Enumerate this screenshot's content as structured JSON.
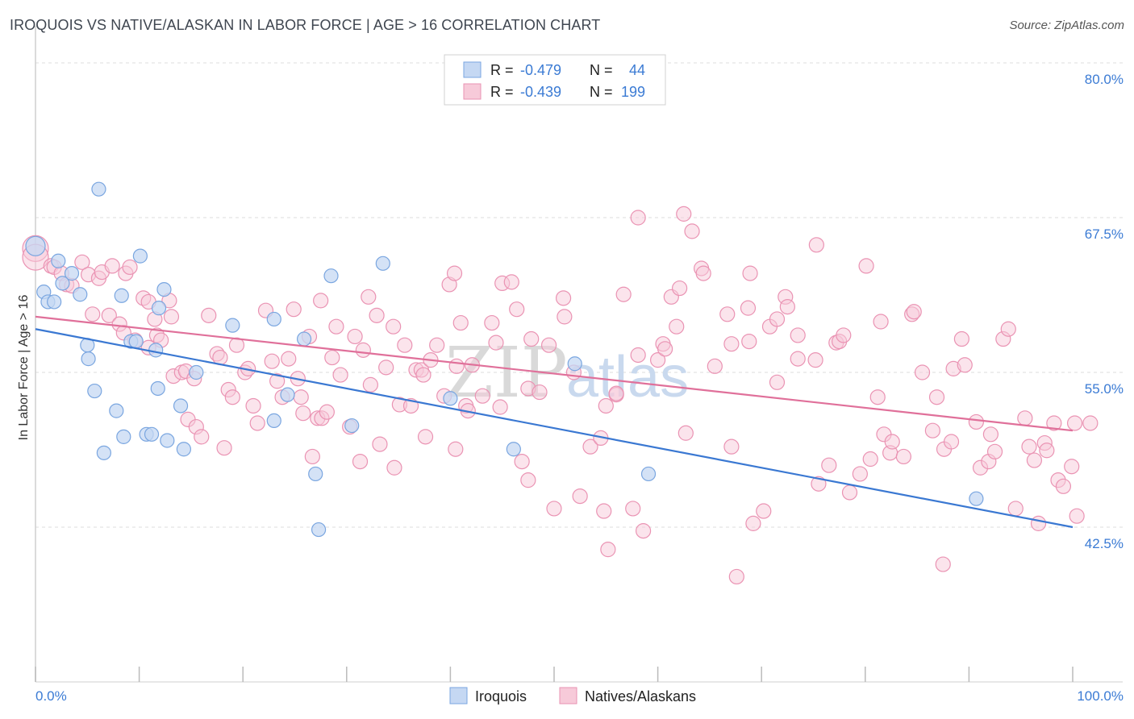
{
  "header": {
    "title": "IROQUOIS VS NATIVE/ALASKAN IN LABOR FORCE | AGE > 16 CORRELATION CHART",
    "source": "Source: ZipAtlas.com"
  },
  "watermark": {
    "zip": "ZIP",
    "atlas": "atlas"
  },
  "legend": {
    "rows": [
      {
        "r_label": "R =",
        "r_value": "-0.479",
        "n_label": "N =",
        "n_value": "44"
      },
      {
        "r_label": "R =",
        "r_value": "-0.439",
        "n_label": "N =",
        "n_value": "199"
      }
    ]
  },
  "bottom_legend": [
    "Iroquois",
    "Natives/Alaskans"
  ],
  "colors": {
    "iroquois_fill": "#c5d8f3",
    "iroquois_stroke": "#7aa6e0",
    "iroquois_line": "#3a78d2",
    "natives_fill": "#f7cad9",
    "natives_stroke": "#ea93b3",
    "natives_line": "#e0709a",
    "tick_text": "#3b7bd4",
    "grid": "#dcdcdc"
  },
  "chart_data": {
    "type": "scatter",
    "ylabel": "In Labor Force | Age > 16",
    "xlabel": "",
    "xlim": [
      0,
      100
    ],
    "ylim": [
      30,
      83
    ],
    "y_ticks": [
      {
        "v": 80,
        "label": "80.0%"
      },
      {
        "v": 67.5,
        "label": "67.5%"
      },
      {
        "v": 55,
        "label": "55.0%"
      },
      {
        "v": 42.5,
        "label": "42.5%"
      }
    ],
    "x_tick_labels": {
      "left": "0.0%",
      "right": "100.0%"
    },
    "grid": true,
    "series": [
      {
        "name": "Iroquois",
        "trend": {
          "x": [
            0,
            100
          ],
          "y": [
            58.5,
            42.5
          ]
        },
        "points": [
          [
            0,
            65.2
          ],
          [
            0.8,
            61.5
          ],
          [
            1.2,
            60.7
          ],
          [
            1.8,
            60.7
          ],
          [
            2.2,
            64
          ],
          [
            2.6,
            62.2
          ],
          [
            3.5,
            63
          ],
          [
            4.3,
            61.3
          ],
          [
            5,
            57.2
          ],
          [
            5.1,
            56.1
          ],
          [
            5.7,
            53.5
          ],
          [
            6.1,
            69.8
          ],
          [
            6.6,
            48.5
          ],
          [
            8.3,
            61.2
          ],
          [
            7.8,
            51.9
          ],
          [
            8.5,
            49.8
          ],
          [
            9.2,
            57.5
          ],
          [
            9.7,
            57.5
          ],
          [
            10.1,
            64.4
          ],
          [
            10.7,
            50
          ],
          [
            11.2,
            50
          ],
          [
            11.6,
            56.8
          ],
          [
            11.8,
            53.7
          ],
          [
            11.9,
            60.2
          ],
          [
            12.4,
            61.7
          ],
          [
            12.7,
            49.5
          ],
          [
            14,
            52.3
          ],
          [
            14.3,
            48.8
          ],
          [
            15.5,
            55
          ],
          [
            19,
            58.8
          ],
          [
            23,
            59.3
          ],
          [
            23,
            51.1
          ],
          [
            24.3,
            53.2
          ],
          [
            25.9,
            57.7
          ],
          [
            27,
            46.8
          ],
          [
            27.3,
            42.3
          ],
          [
            28.5,
            62.8
          ],
          [
            30.5,
            50.7
          ],
          [
            33.5,
            63.8
          ],
          [
            40,
            52.9
          ],
          [
            46.1,
            48.8
          ],
          [
            52,
            55.7
          ],
          [
            59.1,
            46.8
          ],
          [
            90.7,
            44.8
          ]
        ]
      },
      {
        "name": "Natives/Alaskans",
        "trend": {
          "x": [
            0,
            100
          ],
          "y": [
            59.5,
            50.3
          ]
        },
        "points": [
          [
            0,
            65
          ],
          [
            0,
            64.3
          ],
          [
            1.5,
            63.6
          ],
          [
            1.8,
            63.5
          ],
          [
            2.5,
            63
          ],
          [
            3,
            62.1
          ],
          [
            3.5,
            62
          ],
          [
            4.5,
            63.9
          ],
          [
            5.1,
            62.9
          ],
          [
            5.5,
            59.7
          ],
          [
            6.1,
            62.6
          ],
          [
            6.4,
            63.1
          ],
          [
            7.1,
            59.6
          ],
          [
            7.4,
            63.6
          ],
          [
            8.1,
            58.9
          ],
          [
            8.5,
            58.2
          ],
          [
            8.7,
            63
          ],
          [
            9.1,
            63.5
          ],
          [
            9.6,
            57.6
          ],
          [
            10.4,
            61
          ],
          [
            10.9,
            60.7
          ],
          [
            10.9,
            57
          ],
          [
            11.5,
            59.3
          ],
          [
            11.7,
            58
          ],
          [
            12.1,
            57.6
          ],
          [
            12.9,
            60.8
          ],
          [
            13.1,
            59.5
          ],
          [
            13.3,
            54.7
          ],
          [
            14.1,
            55
          ],
          [
            14.5,
            55.1
          ],
          [
            14.7,
            51.2
          ],
          [
            15.3,
            54.5
          ],
          [
            15.5,
            50.6
          ],
          [
            16.7,
            59.6
          ],
          [
            17.5,
            56.5
          ],
          [
            17.8,
            56.2
          ],
          [
            18.2,
            48.9
          ],
          [
            18.6,
            53.6
          ],
          [
            19,
            53
          ],
          [
            19.4,
            57.2
          ],
          [
            20.2,
            55
          ],
          [
            21,
            52.3
          ],
          [
            21.4,
            50.9
          ],
          [
            22.2,
            60
          ],
          [
            22.8,
            55.9
          ],
          [
            23.3,
            54.3
          ],
          [
            23.8,
            53
          ],
          [
            24.4,
            56.1
          ],
          [
            24.9,
            60.1
          ],
          [
            25.3,
            54.5
          ],
          [
            25.6,
            53
          ],
          [
            25.8,
            51.7
          ],
          [
            26.4,
            57.9
          ],
          [
            26.7,
            48.2
          ],
          [
            27.2,
            51.3
          ],
          [
            27.6,
            51.3
          ],
          [
            28.1,
            51.8
          ],
          [
            28.6,
            56.2
          ],
          [
            29,
            58.7
          ],
          [
            29.4,
            54.8
          ],
          [
            30.3,
            50.6
          ],
          [
            30.8,
            57.9
          ],
          [
            31.3,
            47.8
          ],
          [
            31.6,
            56.8
          ],
          [
            32.3,
            54
          ],
          [
            32.9,
            59.6
          ],
          [
            33.2,
            49.2
          ],
          [
            33.8,
            55.4
          ],
          [
            34.6,
            47.3
          ],
          [
            34.5,
            58.7
          ],
          [
            35.1,
            52.4
          ],
          [
            35.6,
            57.2
          ],
          [
            36.2,
            52.3
          ],
          [
            36.7,
            55.2
          ],
          [
            37.2,
            55.2
          ],
          [
            37.4,
            54.8
          ],
          [
            38.1,
            56
          ],
          [
            38.7,
            57.2
          ],
          [
            39.4,
            53.1
          ],
          [
            39.9,
            62.1
          ],
          [
            40.4,
            63
          ],
          [
            40.6,
            55.5
          ],
          [
            40.5,
            48.8
          ],
          [
            41,
            59
          ],
          [
            41.5,
            52.3
          ],
          [
            42.1,
            55.6
          ],
          [
            43.1,
            53.1
          ],
          [
            44,
            59
          ],
          [
            44.4,
            57.4
          ],
          [
            44.8,
            52.2
          ],
          [
            45,
            62.2
          ],
          [
            45.9,
            62.3
          ],
          [
            46.4,
            60.1
          ],
          [
            46.9,
            47.8
          ],
          [
            47.5,
            53.7
          ],
          [
            47.5,
            46.3
          ],
          [
            47.8,
            57.7
          ],
          [
            48.6,
            53.4
          ],
          [
            49.5,
            57.2
          ],
          [
            50,
            44
          ],
          [
            50.9,
            61
          ],
          [
            51,
            59.5
          ],
          [
            51.9,
            55
          ],
          [
            52.5,
            45
          ],
          [
            53.5,
            49
          ],
          [
            54.5,
            49.7
          ],
          [
            55,
            52.3
          ],
          [
            56,
            53.2
          ],
          [
            56.7,
            61.3
          ],
          [
            56,
            53.3
          ],
          [
            57.6,
            44
          ],
          [
            58.1,
            56.4
          ],
          [
            58.6,
            42.2
          ],
          [
            60,
            56
          ],
          [
            60.5,
            57.3
          ],
          [
            60.7,
            56.9
          ],
          [
            61.3,
            61.1
          ],
          [
            61.8,
            58.7
          ],
          [
            62.1,
            61.8
          ],
          [
            62.7,
            50.1
          ],
          [
            63.3,
            66.4
          ],
          [
            64.2,
            63.4
          ],
          [
            64.4,
            63
          ],
          [
            65.5,
            55.5
          ],
          [
            66.7,
            59.7
          ],
          [
            67.1,
            57.3
          ],
          [
            67.1,
            49
          ],
          [
            67.6,
            38.5
          ],
          [
            68.8,
            57.5
          ],
          [
            68.7,
            60.2
          ],
          [
            68.9,
            63
          ],
          [
            69.2,
            42.8
          ],
          [
            70.2,
            43.8
          ],
          [
            70.8,
            58.7
          ],
          [
            71.5,
            59.3
          ],
          [
            71.5,
            54.2
          ],
          [
            72.3,
            61.1
          ],
          [
            72.5,
            60.3
          ],
          [
            73.5,
            58
          ],
          [
            73.5,
            56.1
          ],
          [
            75.2,
            56
          ],
          [
            75.3,
            65.3
          ],
          [
            75.5,
            46
          ],
          [
            76.5,
            47.5
          ],
          [
            77.2,
            57.4
          ],
          [
            77.5,
            57.5
          ],
          [
            77.9,
            58
          ],
          [
            78.5,
            45.3
          ],
          [
            79.5,
            46.8
          ],
          [
            80.1,
            63.6
          ],
          [
            80.5,
            48
          ],
          [
            81.2,
            53
          ],
          [
            81.5,
            59.1
          ],
          [
            81.8,
            50
          ],
          [
            82.4,
            48.5
          ],
          [
            82.6,
            49.4
          ],
          [
            83.7,
            48.2
          ],
          [
            84.5,
            59.7
          ],
          [
            84.7,
            59.9
          ],
          [
            85.5,
            55
          ],
          [
            86.5,
            50.3
          ],
          [
            86.9,
            53
          ],
          [
            87.6,
            48.8
          ],
          [
            88.3,
            49.4
          ],
          [
            88.5,
            55.3
          ],
          [
            89.3,
            57.7
          ],
          [
            89.6,
            55.6
          ],
          [
            90.7,
            51
          ],
          [
            91.1,
            47.3
          ],
          [
            91.9,
            47.8
          ],
          [
            92.1,
            50
          ],
          [
            92.5,
            48.6
          ],
          [
            93.3,
            57.7
          ],
          [
            93.8,
            58.5
          ],
          [
            94.5,
            44
          ],
          [
            95.4,
            51.3
          ],
          [
            95.8,
            49
          ],
          [
            96.3,
            47.9
          ],
          [
            96.7,
            42.8
          ],
          [
            97.3,
            49.3
          ],
          [
            97.5,
            48.7
          ],
          [
            98.2,
            50.9
          ],
          [
            98.6,
            46.3
          ],
          [
            99.1,
            45.8
          ],
          [
            99.9,
            47.4
          ],
          [
            100.2,
            50.9
          ],
          [
            100.4,
            43.4
          ],
          [
            101.7,
            50.9
          ],
          [
            87.5,
            39.5
          ],
          [
            55.2,
            40.7
          ],
          [
            54.8,
            43.8
          ],
          [
            41.7,
            51.9
          ],
          [
            37.6,
            49.8
          ],
          [
            32.1,
            61.1
          ],
          [
            27.5,
            60.8
          ],
          [
            20.5,
            55.3
          ],
          [
            16,
            49.8
          ],
          [
            62.5,
            67.8
          ],
          [
            58.1,
            67.5
          ]
        ]
      }
    ]
  }
}
